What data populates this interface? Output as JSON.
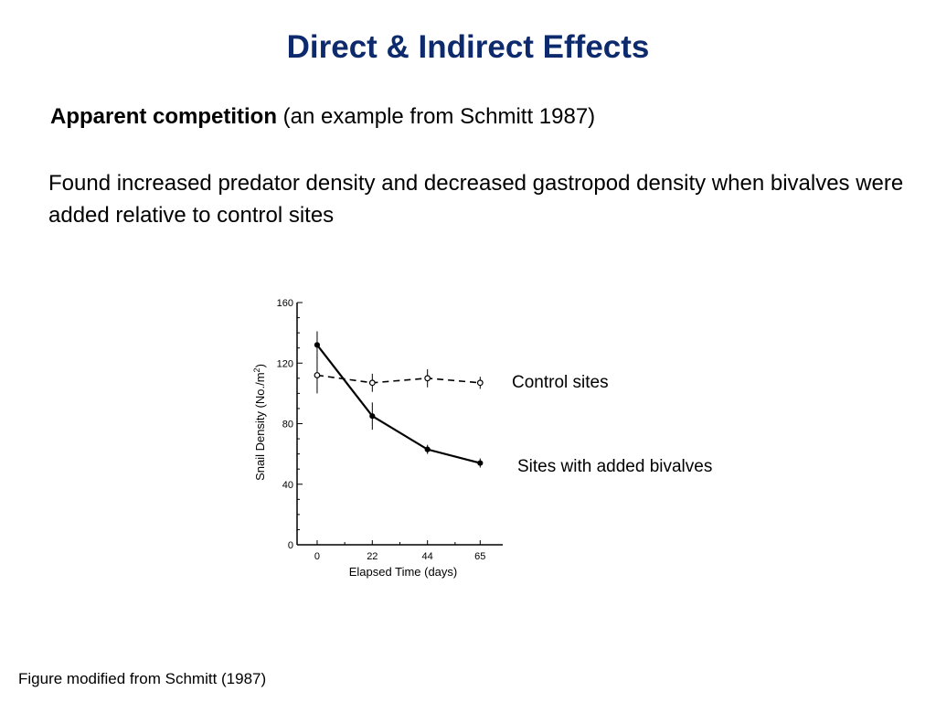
{
  "slide": {
    "title": "Direct & Indirect Effects",
    "subtitle_bold": "Apparent competition",
    "subtitle_rest": " (an example from Schmitt 1987)",
    "body": "Found increased predator density and decreased gastropod density when bivalves were added relative to control sites",
    "caption": "Figure modified from Schmitt (1987)",
    "title_color": "#0d2a6c"
  },
  "annotations": {
    "control": "Control sites",
    "treatment": "Sites with added bivalves"
  },
  "chart_data": {
    "type": "line",
    "x": [
      0,
      22,
      44,
      65
    ],
    "xlabel": "Elapsed Time (days)",
    "ylabel_main": "Snail Density (No./m",
    "ylabel_sup": "2",
    "ylabel_close": ")",
    "xlim": [
      -8,
      74
    ],
    "ylim": [
      0,
      160
    ],
    "xticks": [
      0,
      22,
      44,
      65
    ],
    "yticks": [
      0,
      40,
      80,
      120,
      160
    ],
    "grid": false,
    "series": [
      {
        "key": "control",
        "style": "dashed",
        "marker": "open-circle",
        "values": [
          112,
          107,
          110,
          107
        ],
        "errors": [
          12,
          6,
          6,
          4
        ]
      },
      {
        "key": "treatment",
        "style": "solid",
        "marker": "filled-circle",
        "values": [
          132,
          85,
          63,
          54
        ],
        "errors": [
          9,
          9,
          3,
          3
        ]
      }
    ]
  }
}
